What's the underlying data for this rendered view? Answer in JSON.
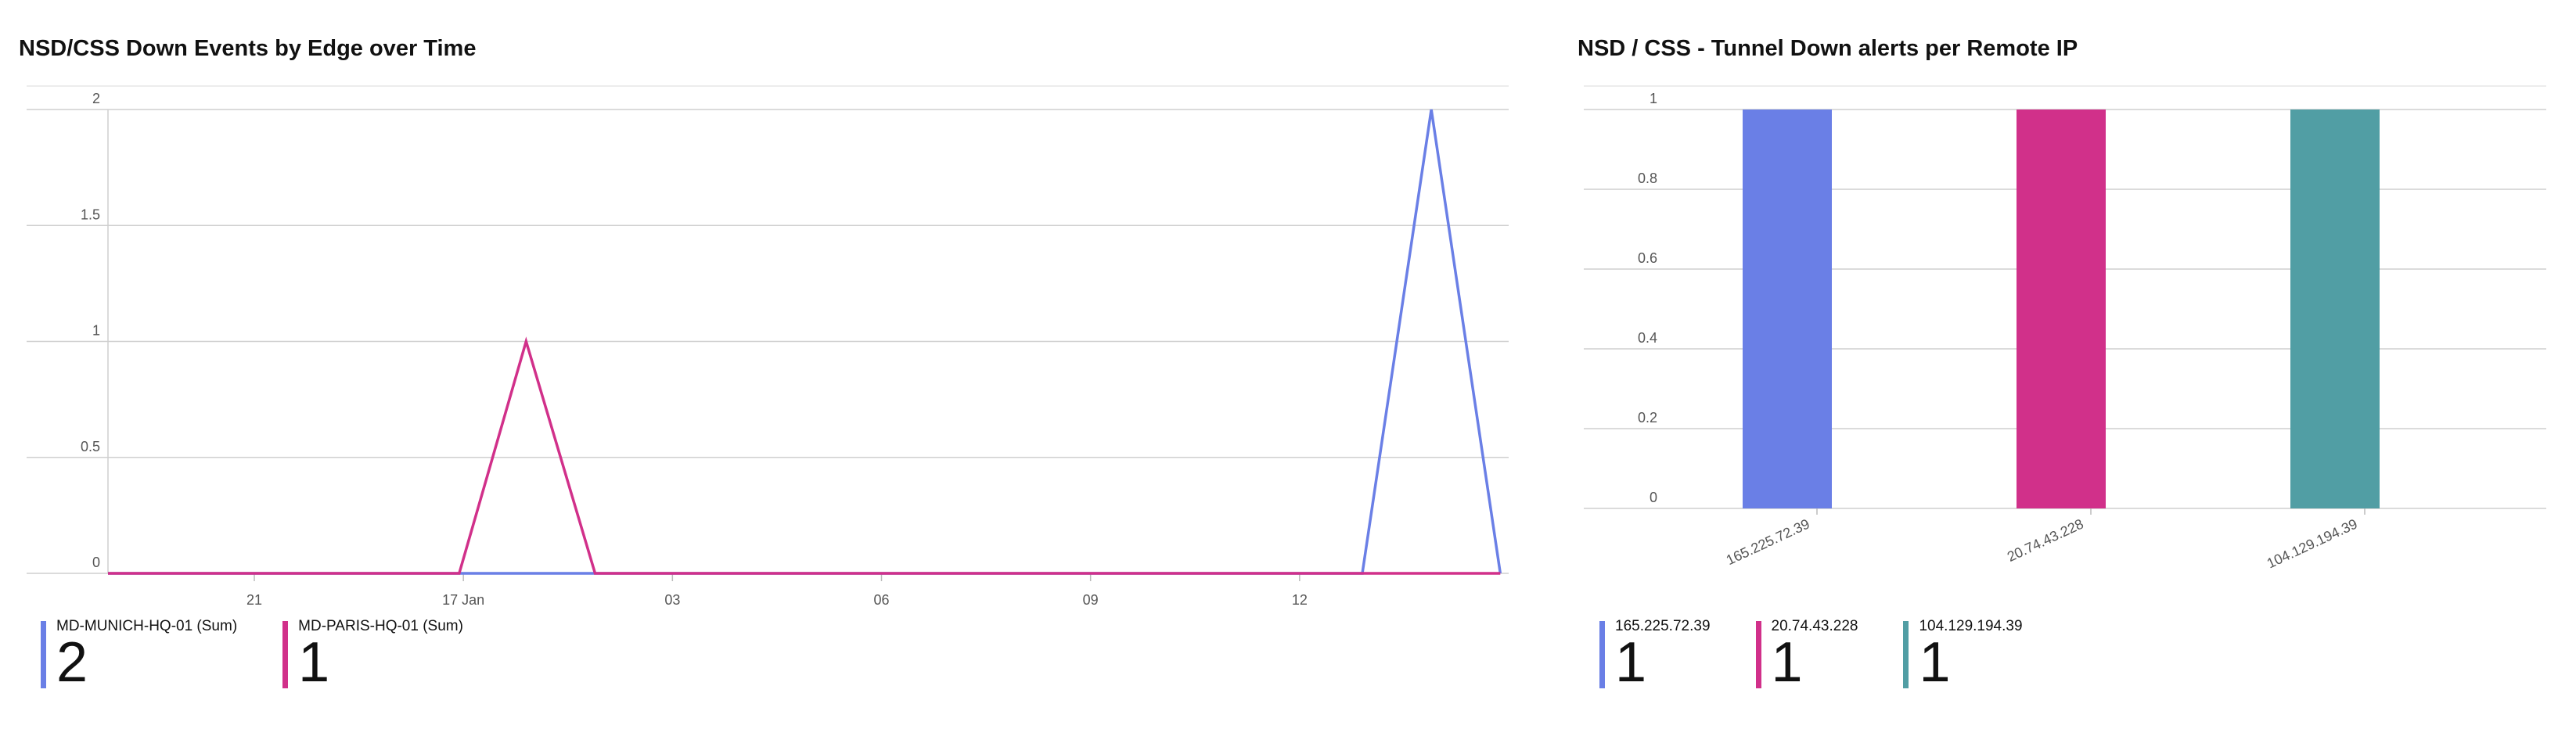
{
  "charts": [
    {
      "title": "NSD/CSS Down Events by Edge over Time",
      "legend": [
        {
          "label": "MD-MUNICH-HQ-01 (Sum)",
          "value": "2",
          "color": "#6a7fe6"
        },
        {
          "label": "MD-PARIS-HQ-01 (Sum)",
          "value": "1",
          "color": "#d1308a"
        }
      ]
    },
    {
      "title": "NSD / CSS - Tunnel Down alerts per Remote IP",
      "legend": [
        {
          "label": "165.225.72.39",
          "value": "1",
          "color": "#6a7fe6"
        },
        {
          "label": "20.74.43.228",
          "value": "1",
          "color": "#d1308a"
        },
        {
          "label": "104.129.194.39",
          "value": "1",
          "color": "#519ea4"
        }
      ]
    }
  ],
  "chart_data": [
    {
      "type": "line",
      "title": "NSD/CSS Down Events by Edge over Time",
      "xlabel": "",
      "ylabel": "",
      "ylim": [
        0,
        2
      ],
      "yticks": [
        "0",
        "0.5",
        "1",
        "1.5",
        "2"
      ],
      "xlim": [
        0,
        33.5
      ],
      "xticks": [
        {
          "label": "21",
          "x": 3.5
        },
        {
          "label": "17 Jan",
          "x": 8.5
        },
        {
          "label": "03",
          "x": 13.5
        },
        {
          "label": "06",
          "x": 18.5
        },
        {
          "label": "09",
          "x": 23.5
        },
        {
          "label": "12",
          "x": 28.5
        }
      ],
      "grid": true,
      "legend": "bottom-left",
      "series": [
        {
          "name": "MD-MUNICH-HQ-01 (Sum)",
          "color": "#6a7fe6",
          "points": [
            [
              0,
              0
            ],
            [
              30,
              0
            ],
            [
              31.65,
              2
            ],
            [
              33.3,
              0
            ]
          ]
        },
        {
          "name": "MD-PARIS-HQ-01 (Sum)",
          "color": "#d1308a",
          "points": [
            [
              0,
              0
            ],
            [
              8.4,
              0
            ],
            [
              10,
              1
            ],
            [
              11.65,
              0
            ],
            [
              33.3,
              0
            ]
          ]
        }
      ]
    },
    {
      "type": "bar",
      "title": "NSD / CSS - Tunnel Down alerts per Remote IP",
      "xlabel": "",
      "ylabel": "",
      "categories": [
        "165.225.72.39",
        "20.74.43.228",
        "104.129.194.39"
      ],
      "values": [
        1,
        1,
        1
      ],
      "colors": [
        "#6a7fe6",
        "#d1308a",
        "#519ea4"
      ],
      "ylim": [
        0,
        1
      ],
      "yticks": [
        "0",
        "0.2",
        "0.4",
        "0.6",
        "0.8",
        "1"
      ],
      "grid": true,
      "legend": "bottom-left"
    }
  ]
}
